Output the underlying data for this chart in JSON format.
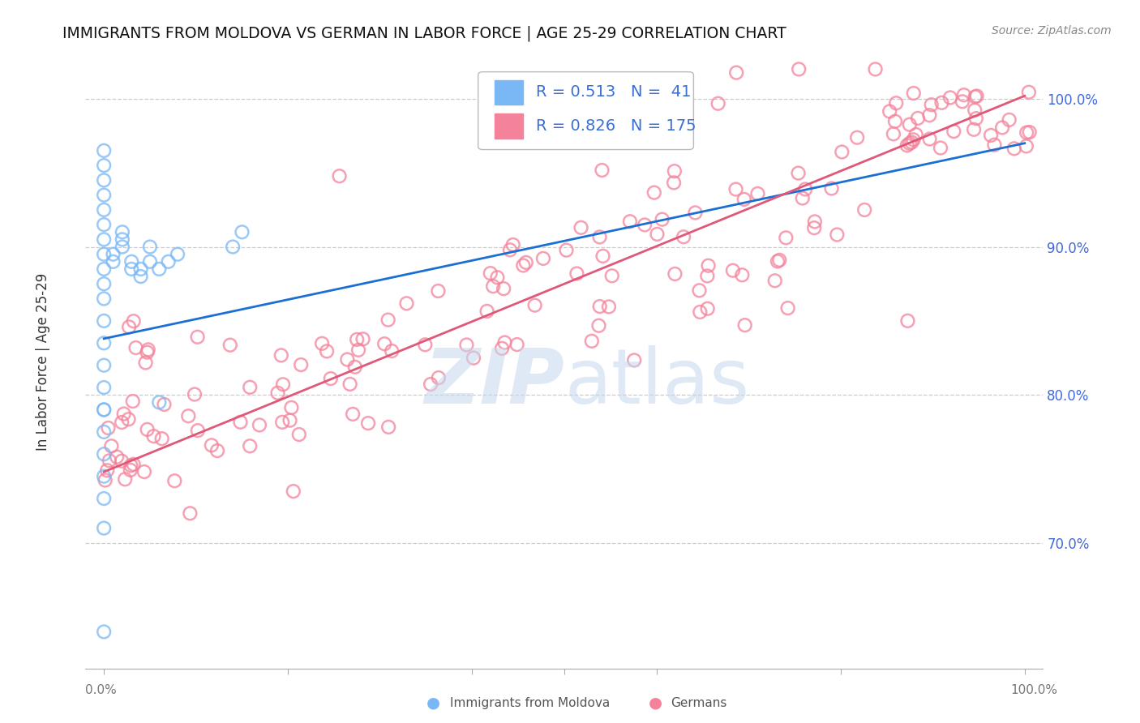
{
  "title": "IMMIGRANTS FROM MOLDOVA VS GERMAN IN LABOR FORCE | AGE 25-29 CORRELATION CHART",
  "source": "Source: ZipAtlas.com",
  "ylabel": "In Labor Force | Age 25-29",
  "legend_moldova_R": "0.513",
  "legend_moldova_N": "41",
  "legend_german_R": "0.826",
  "legend_german_N": "175",
  "moldova_color": "#7ab8f5",
  "german_color": "#f4829a",
  "moldova_line_color": "#1a6fd4",
  "german_line_color": "#e05878",
  "watermark_zip_color": "#c5d8f0",
  "watermark_atlas_color": "#c5d8f0",
  "ytick_values": [
    0.7,
    0.8,
    0.9,
    1.0
  ],
  "ytick_labels": [
    "70.0%",
    "80.0%",
    "90.0%",
    "100.0%"
  ],
  "xlim": [
    -0.02,
    1.02
  ],
  "ylim": [
    0.615,
    1.035
  ],
  "moldova_line_x": [
    0.0,
    1.0
  ],
  "moldova_line_y": [
    0.838,
    0.97
  ],
  "german_line_x": [
    0.0,
    1.0
  ],
  "german_line_y": [
    0.748,
    1.002
  ]
}
